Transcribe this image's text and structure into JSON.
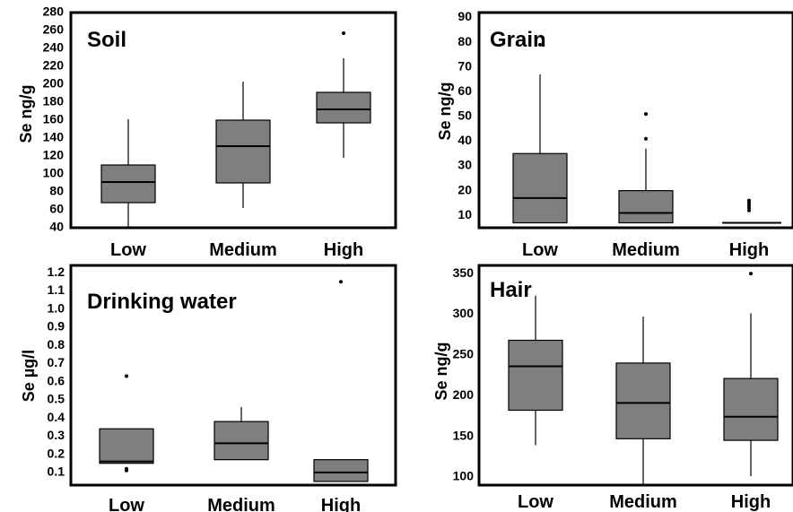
{
  "colors": {
    "box_fill": "#7f7f7f",
    "line": "#000000",
    "background": "#ffffff"
  },
  "chart_data": [
    {
      "type": "boxplot",
      "title": "Soil",
      "ylabel": "Se ng/g",
      "xlabel": "",
      "ylim": [
        40,
        280
      ],
      "yticks": [
        40,
        60,
        80,
        100,
        120,
        140,
        160,
        180,
        200,
        220,
        240,
        260,
        280
      ],
      "categories": [
        "Low",
        "Medium",
        "High"
      ],
      "boxes": [
        {
          "whisker_low": 40,
          "q1": 68,
          "median": 91,
          "q3": 110,
          "whisker_high": 161,
          "outliers": []
        },
        {
          "whisker_low": 62,
          "q1": 90,
          "median": 131,
          "q3": 160,
          "whisker_high": 203,
          "outliers": []
        },
        {
          "whisker_low": 118,
          "q1": 157,
          "median": 172,
          "q3": 191,
          "whisker_high": 229,
          "outliers": [
            257
          ]
        }
      ]
    },
    {
      "type": "boxplot",
      "title": "Grain",
      "ylabel": "Se ng/g",
      "xlabel": "",
      "ylim": [
        5,
        92
      ],
      "yticks": [
        10,
        20,
        30,
        40,
        50,
        60,
        70,
        80,
        90
      ],
      "categories": [
        "Low",
        "Medium",
        "High"
      ],
      "boxes": [
        {
          "whisker_low": 7,
          "q1": 7,
          "median": 17,
          "q3": 35,
          "whisker_high": 67,
          "outliers": [
            79
          ]
        },
        {
          "whisker_low": 7,
          "q1": 7,
          "median": 11,
          "q3": 20,
          "whisker_high": 37,
          "outliers": [
            41,
            51
          ]
        },
        {
          "whisker_low": 7,
          "q1": 7,
          "median": 7,
          "q3": 7,
          "whisker_high": 7,
          "outliers": [
            12,
            13,
            14,
            15,
            16
          ]
        }
      ]
    },
    {
      "type": "boxplot",
      "title": "Drinking water",
      "ylabel": "Se µg/l",
      "xlabel": "",
      "ylim": [
        0.03,
        1.24
      ],
      "yticks": [
        0.1,
        0.2,
        0.3,
        0.4,
        0.5,
        0.6,
        0.7,
        0.8,
        0.9,
        1.0,
        1.1,
        1.2
      ],
      "categories": [
        "Low",
        "Medium",
        "High"
      ],
      "boxes": [
        {
          "whisker_low": 0.15,
          "q1": 0.15,
          "median": 0.16,
          "q3": 0.34,
          "whisker_high": 0.34,
          "outliers": [
            0.11,
            0.12,
            0.63
          ]
        },
        {
          "whisker_low": 0.17,
          "q1": 0.17,
          "median": 0.26,
          "q3": 0.38,
          "whisker_high": 0.46,
          "outliers": []
        },
        {
          "whisker_low": 0.05,
          "q1": 0.05,
          "median": 0.1,
          "q3": 0.17,
          "whisker_high": 0.17,
          "outliers": [
            1.15
          ]
        }
      ]
    },
    {
      "type": "boxplot",
      "title": "Hair",
      "ylabel": "Se ng/g",
      "xlabel": "",
      "ylim": [
        90,
        360
      ],
      "yticks": [
        100,
        150,
        200,
        250,
        300,
        350
      ],
      "categories": [
        "Low",
        "Medium",
        "High"
      ],
      "boxes": [
        {
          "whisker_low": 139,
          "q1": 182,
          "median": 236,
          "q3": 268,
          "whisker_high": 323,
          "outliers": []
        },
        {
          "whisker_low": 90,
          "q1": 147,
          "median": 191,
          "q3": 240,
          "whisker_high": 297,
          "outliers": []
        },
        {
          "whisker_low": 101,
          "q1": 145,
          "median": 174,
          "q3": 221,
          "whisker_high": 301,
          "outliers": [
            350
          ]
        }
      ]
    }
  ]
}
